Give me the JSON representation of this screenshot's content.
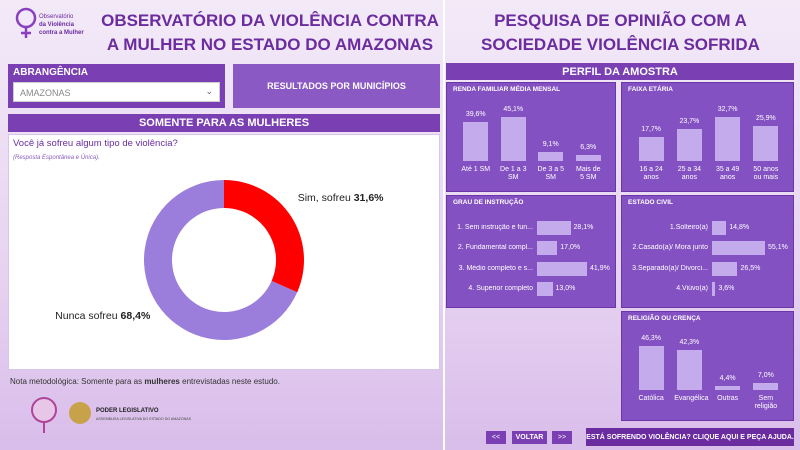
{
  "header": {
    "logo_line1": "Observatório",
    "logo_line2": "da Violência",
    "logo_line3": "contra a Mulher",
    "title_left": "OBSERVATÓRIO DA VIOLÊNCIA CONTRA A MULHER NO ESTADO DO AMAZONAS",
    "title_right": "PESQUISA DE OPINIÃO COM A SOCIEDADE VIOLÊNCIA SOFRIDA"
  },
  "filters": {
    "label": "ABRANGÊNCIA",
    "selected": "AMAZONAS",
    "button": "RESULTADOS POR MUNICÍPIOS"
  },
  "section_left": "SOMENTE PARA AS MULHERES",
  "section_right": "PERFIL DA AMOSTRA",
  "note": {
    "prefix": "Nota metodológica: Somente para as ",
    "bold": "mulheres",
    "suffix": " entrevistadas neste estudo."
  },
  "footer": {
    "org": "PODER LEGISLATIVO",
    "org_sub": "ASSEMBLEIA LEGISLATIVA DO ESTADO DO AMAZONAS",
    "nav_prev": "<<",
    "nav_back": "VOLTAR",
    "nav_next": ">>",
    "help": "ESTÁ SOFRENDO VIOLÊNCIA? CLIQUE AQUI E PEÇA AJUDA."
  },
  "chart_data": [
    {
      "type": "donut",
      "title": "Você já sofreu algum tipo de violência?",
      "subtitle": "(Resposta Espontânea e Única).",
      "categories": [
        "Sim, sofreu",
        "Nunca sofreu"
      ],
      "values": [
        31.6,
        68.4
      ],
      "value_labels": [
        "31,6%",
        "68,4%"
      ],
      "colors": [
        "#ff0000",
        "#9b7ddb"
      ]
    },
    {
      "type": "bar",
      "title": "RENDA FAMILIAR MÉDIA MENSAL",
      "categories": [
        "Até 1 SM",
        "De 1 a 3 SM",
        "De 3 a 5 SM",
        "Mais de 5 SM"
      ],
      "values": [
        39.6,
        45.1,
        9.1,
        6.3
      ],
      "value_labels": [
        "39,6%",
        "45,1%",
        "9,1%",
        "6,3%"
      ],
      "color": "#c4abeb"
    },
    {
      "type": "bar",
      "title": "FAIXA ETÁRIA",
      "categories": [
        "16 a 24 anos",
        "25 a 34 anos",
        "35 a 49 anos",
        "50 anos ou mais"
      ],
      "values": [
        17.7,
        23.7,
        32.7,
        25.9
      ],
      "value_labels": [
        "17,7%",
        "23,7%",
        "32,7%",
        "25,9%"
      ],
      "color": "#c4abeb"
    },
    {
      "type": "hbar",
      "title": "GRAU DE INSTRUÇÃO",
      "categories": [
        "1. Sem instrução e fun...",
        "2. Fundamental compl...",
        "3. Médio completo e s...",
        "4. Superior completo"
      ],
      "values": [
        28.1,
        17.0,
        41.9,
        13.0
      ],
      "value_labels": [
        "28,1%",
        "17,0%",
        "41,9%",
        "13,0%"
      ],
      "color": "#c4abeb"
    },
    {
      "type": "hbar",
      "title": "ESTADO CIVIL",
      "categories": [
        "1.Solteiro(a)",
        "2.Casado(a)/ Mora junto",
        "3.Separado(a)/ Divorci...",
        "4.Viúvo(a)"
      ],
      "values": [
        14.8,
        55.1,
        26.5,
        3.6
      ],
      "value_labels": [
        "14,8%",
        "55,1%",
        "26,5%",
        "3,6%"
      ],
      "color": "#c4abeb"
    },
    {
      "type": "bar",
      "title": "RELIGIÃO OU CRENÇA",
      "categories": [
        "Católica",
        "Evangélica",
        "Outras",
        "Sem religião"
      ],
      "values": [
        46.3,
        42.3,
        4.4,
        7.0
      ],
      "value_labels": [
        "46,3%",
        "42,3%",
        "4,4%",
        "7,0%"
      ],
      "color": "#c4abeb"
    }
  ]
}
